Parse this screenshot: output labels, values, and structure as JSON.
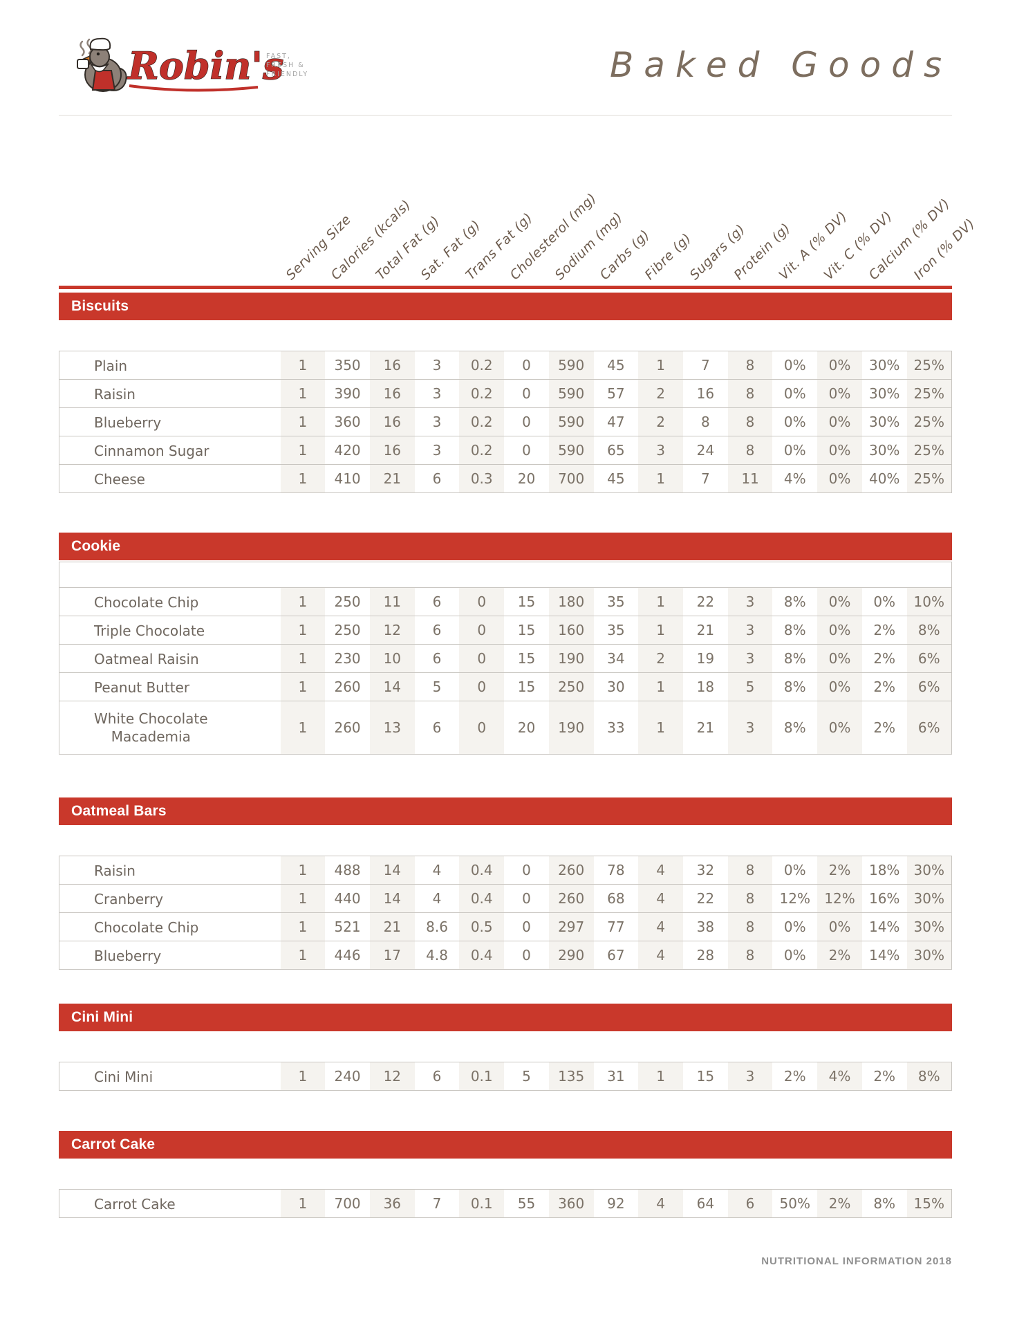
{
  "brand": {
    "name": "Robin's",
    "tagline_lines": [
      "FAST,",
      "FRESH &",
      "FRIENDLY"
    ],
    "title": "Baked Goods"
  },
  "colors": {
    "accent_red": "#c9382b",
    "logo_red": "#c0302a",
    "heading_brown": "#6d5c4e",
    "title_brown": "#7d6e5f",
    "text_gray": "#7b7267",
    "column_stripe": "#f5f3ef",
    "footer_gray": "#8f8f8f"
  },
  "table": {
    "columns": [
      "Serving Size",
      "Calories (kcals)",
      "Total Fat (g)",
      "Sat. Fat (g)",
      "Trans Fat (g)",
      "Cholesterol (mg)",
      "Sodium (mg)",
      "Carbs (g)",
      "Fibre (g)",
      "Sugars (g)",
      "Protein (g)",
      "Vit. A (% DV)",
      "Vit. C (% DV)",
      "Calcium (% DV)",
      "Iron (% DV)"
    ]
  },
  "sections": [
    {
      "title": "Biscuits",
      "has_empty_lead_row": false,
      "rows": [
        {
          "label": "Plain",
          "values": [
            "1",
            "350",
            "16",
            "3",
            "0.2",
            "0",
            "590",
            "45",
            "1",
            "7",
            "8",
            "0%",
            "0%",
            "30%",
            "25%"
          ]
        },
        {
          "label": "Raisin",
          "values": [
            "1",
            "390",
            "16",
            "3",
            "0.2",
            "0",
            "590",
            "57",
            "2",
            "16",
            "8",
            "0%",
            "0%",
            "30%",
            "25%"
          ]
        },
        {
          "label": "Blueberry",
          "values": [
            "1",
            "360",
            "16",
            "3",
            "0.2",
            "0",
            "590",
            "47",
            "2",
            "8",
            "8",
            "0%",
            "0%",
            "30%",
            "25%"
          ]
        },
        {
          "label": "Cinnamon Sugar",
          "values": [
            "1",
            "420",
            "16",
            "3",
            "0.2",
            "0",
            "590",
            "65",
            "3",
            "24",
            "8",
            "0%",
            "0%",
            "30%",
            "25%"
          ]
        },
        {
          "label": "Cheese",
          "values": [
            "1",
            "410",
            "21",
            "6",
            "0.3",
            "20",
            "700",
            "45",
            "1",
            "7",
            "11",
            "4%",
            "0%",
            "40%",
            "25%"
          ]
        }
      ]
    },
    {
      "title": "Cookie",
      "has_empty_lead_row": true,
      "rows": [
        {
          "label": "Chocolate Chip",
          "values": [
            "1",
            "250",
            "11",
            "6",
            "0",
            "15",
            "180",
            "35",
            "1",
            "22",
            "3",
            "8%",
            "0%",
            "0%",
            "10%"
          ]
        },
        {
          "label": "Triple Chocolate",
          "values": [
            "1",
            "250",
            "12",
            "6",
            "0",
            "15",
            "160",
            "35",
            "1",
            "21",
            "3",
            "8%",
            "0%",
            "2%",
            "8%"
          ]
        },
        {
          "label": "Oatmeal Raisin",
          "values": [
            "1",
            "230",
            "10",
            "6",
            "0",
            "15",
            "190",
            "34",
            "2",
            "19",
            "3",
            "8%",
            "0%",
            "2%",
            "6%"
          ]
        },
        {
          "label": "Peanut Butter",
          "values": [
            "1",
            "260",
            "14",
            "5",
            "0",
            "15",
            "250",
            "30",
            "1",
            "18",
            "5",
            "8%",
            "0%",
            "2%",
            "6%"
          ]
        },
        {
          "label": "White Chocolate\nMacademia",
          "values": [
            "1",
            "260",
            "13",
            "6",
            "0",
            "20",
            "190",
            "33",
            "1",
            "21",
            "3",
            "8%",
            "0%",
            "2%",
            "6%"
          ]
        }
      ]
    },
    {
      "title": "Oatmeal Bars",
      "has_empty_lead_row": false,
      "rows": [
        {
          "label": "Raisin",
          "values": [
            "1",
            "488",
            "14",
            "4",
            "0.4",
            "0",
            "260",
            "78",
            "4",
            "32",
            "8",
            "0%",
            "2%",
            "18%",
            "30%"
          ]
        },
        {
          "label": "Cranberry",
          "values": [
            "1",
            "440",
            "14",
            "4",
            "0.4",
            "0",
            "260",
            "68",
            "4",
            "22",
            "8",
            "12%",
            "12%",
            "16%",
            "30%"
          ]
        },
        {
          "label": "Chocolate Chip",
          "values": [
            "1",
            "521",
            "21",
            "8.6",
            "0.5",
            "0",
            "297",
            "77",
            "4",
            "38",
            "8",
            "0%",
            "0%",
            "14%",
            "30%"
          ]
        },
        {
          "label": "Blueberry",
          "values": [
            "1",
            "446",
            "17",
            "4.8",
            "0.4",
            "0",
            "290",
            "67",
            "4",
            "28",
            "8",
            "0%",
            "2%",
            "14%",
            "30%"
          ]
        }
      ]
    },
    {
      "title": "Cini Mini",
      "has_empty_lead_row": false,
      "rows": [
        {
          "label": "Cini Mini",
          "values": [
            "1",
            "240",
            "12",
            "6",
            "0.1",
            "5",
            "135",
            "31",
            "1",
            "15",
            "3",
            "2%",
            "4%",
            "2%",
            "8%"
          ]
        }
      ]
    },
    {
      "title": "Carrot Cake",
      "has_empty_lead_row": false,
      "rows": [
        {
          "label": "Carrot Cake",
          "values": [
            "1",
            "700",
            "36",
            "7",
            "0.1",
            "55",
            "360",
            "92",
            "4",
            "64",
            "6",
            "50%",
            "2%",
            "8%",
            "15%"
          ]
        }
      ]
    }
  ],
  "footer": {
    "text": "NUTRITIONAL INFORMATION 2018"
  }
}
